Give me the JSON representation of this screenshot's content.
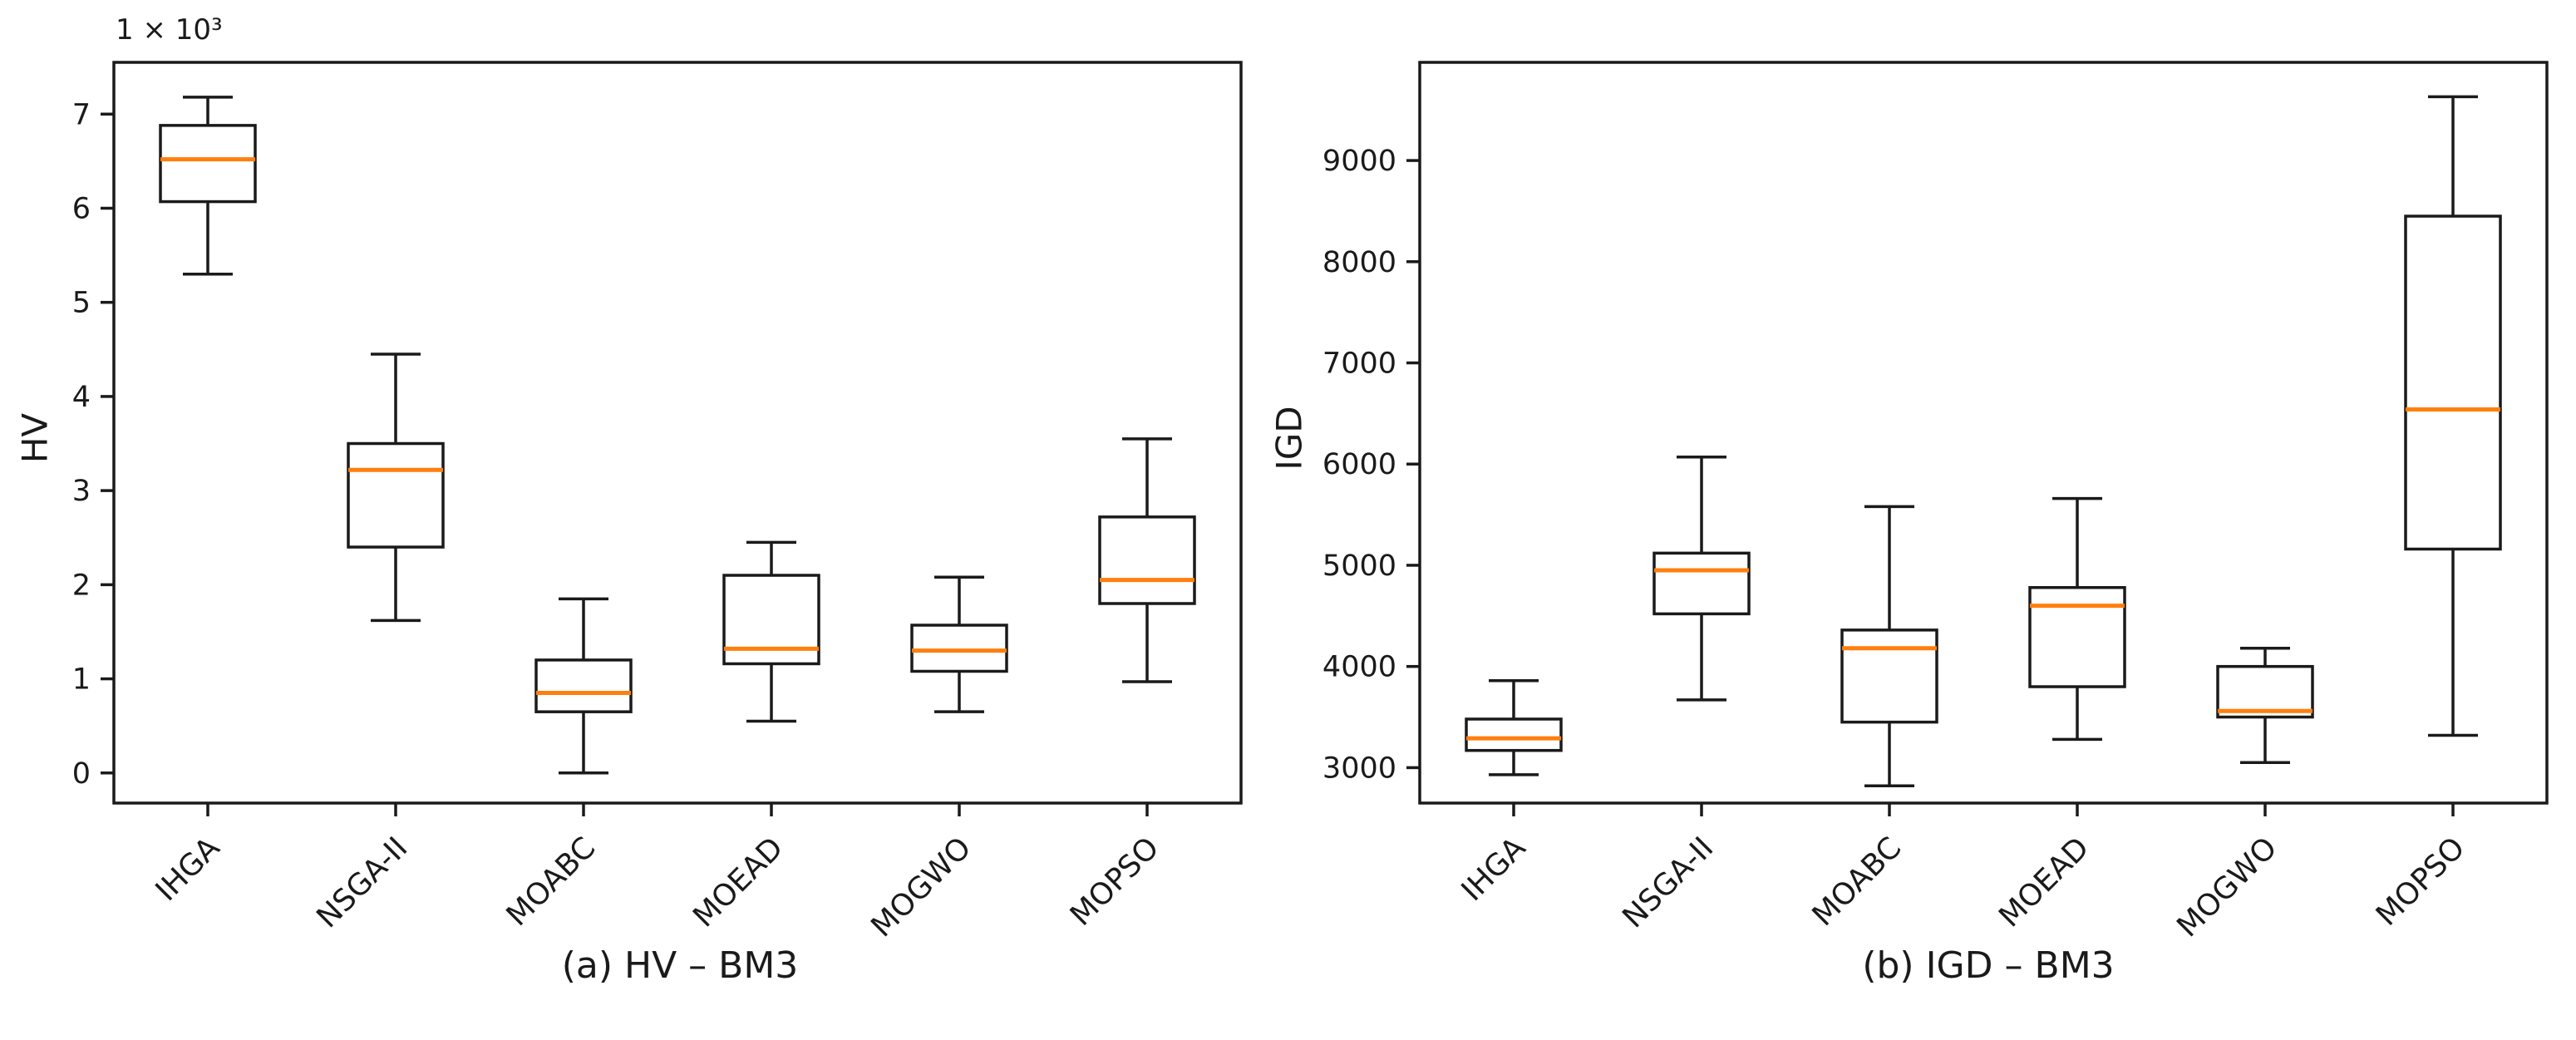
{
  "style": {
    "background": "#ffffff",
    "line_color": "#1a1a1a",
    "median_color": "#ff7f0e",
    "text_color": "#1a1a1a"
  },
  "chart_data": [
    {
      "type": "boxplot",
      "panel": "a",
      "caption": "(a) HV – BM3",
      "ylabel": "HV",
      "offset_text": "1 × 10³",
      "grid": false,
      "legend": null,
      "categories": [
        "IHGA",
        "NSGA-II",
        "MOABC",
        "MOEAD",
        "MOGWO",
        "MOPSO"
      ],
      "yticks": [
        0,
        1,
        2,
        3,
        4,
        5,
        6,
        7
      ],
      "ylim": [
        -0.32,
        7.55
      ],
      "units": "×10³",
      "series": [
        {
          "name": "IHGA",
          "whislo": 5.3,
          "q1": 6.07,
          "med": 6.52,
          "q3": 6.88,
          "whishi": 7.18
        },
        {
          "name": "NSGA-II",
          "whislo": 1.62,
          "q1": 2.4,
          "med": 3.22,
          "q3": 3.5,
          "whishi": 4.45
        },
        {
          "name": "MOABC",
          "whislo": 0.0,
          "q1": 0.65,
          "med": 0.85,
          "q3": 1.2,
          "whishi": 1.85
        },
        {
          "name": "MOEAD",
          "whislo": 0.55,
          "q1": 1.16,
          "med": 1.32,
          "q3": 2.1,
          "whishi": 2.45
        },
        {
          "name": "MOGWO",
          "whislo": 0.65,
          "q1": 1.08,
          "med": 1.3,
          "q3": 1.57,
          "whishi": 2.08
        },
        {
          "name": "MOPSO",
          "whislo": 0.97,
          "q1": 1.8,
          "med": 2.05,
          "q3": 2.72,
          "whishi": 3.55
        }
      ]
    },
    {
      "type": "boxplot",
      "panel": "b",
      "caption": "(b) IGD – BM3",
      "ylabel": "IGD",
      "offset_text": "",
      "grid": false,
      "legend": null,
      "categories": [
        "IHGA",
        "NSGA-II",
        "MOABC",
        "MOEAD",
        "MOGWO",
        "MOPSO"
      ],
      "yticks": [
        3000,
        4000,
        5000,
        6000,
        7000,
        8000,
        9000
      ],
      "ylim": [
        2650,
        9970
      ],
      "units": "",
      "series": [
        {
          "name": "IHGA",
          "whislo": 2930,
          "q1": 3170,
          "med": 3290,
          "q3": 3480,
          "whishi": 3860
        },
        {
          "name": "NSGA-II",
          "whislo": 3670,
          "q1": 4520,
          "med": 4950,
          "q3": 5120,
          "whishi": 6070
        },
        {
          "name": "MOABC",
          "whislo": 2820,
          "q1": 3450,
          "med": 4180,
          "q3": 4360,
          "whishi": 5580
        },
        {
          "name": "MOEAD",
          "whislo": 3280,
          "q1": 3800,
          "med": 4600,
          "q3": 4780,
          "whishi": 5660
        },
        {
          "name": "MOGWO",
          "whislo": 3050,
          "q1": 3500,
          "med": 3560,
          "q3": 4000,
          "whishi": 4180
        },
        {
          "name": "MOPSO",
          "whislo": 3320,
          "q1": 5160,
          "med": 6540,
          "q3": 8450,
          "whishi": 9630
        }
      ]
    }
  ]
}
